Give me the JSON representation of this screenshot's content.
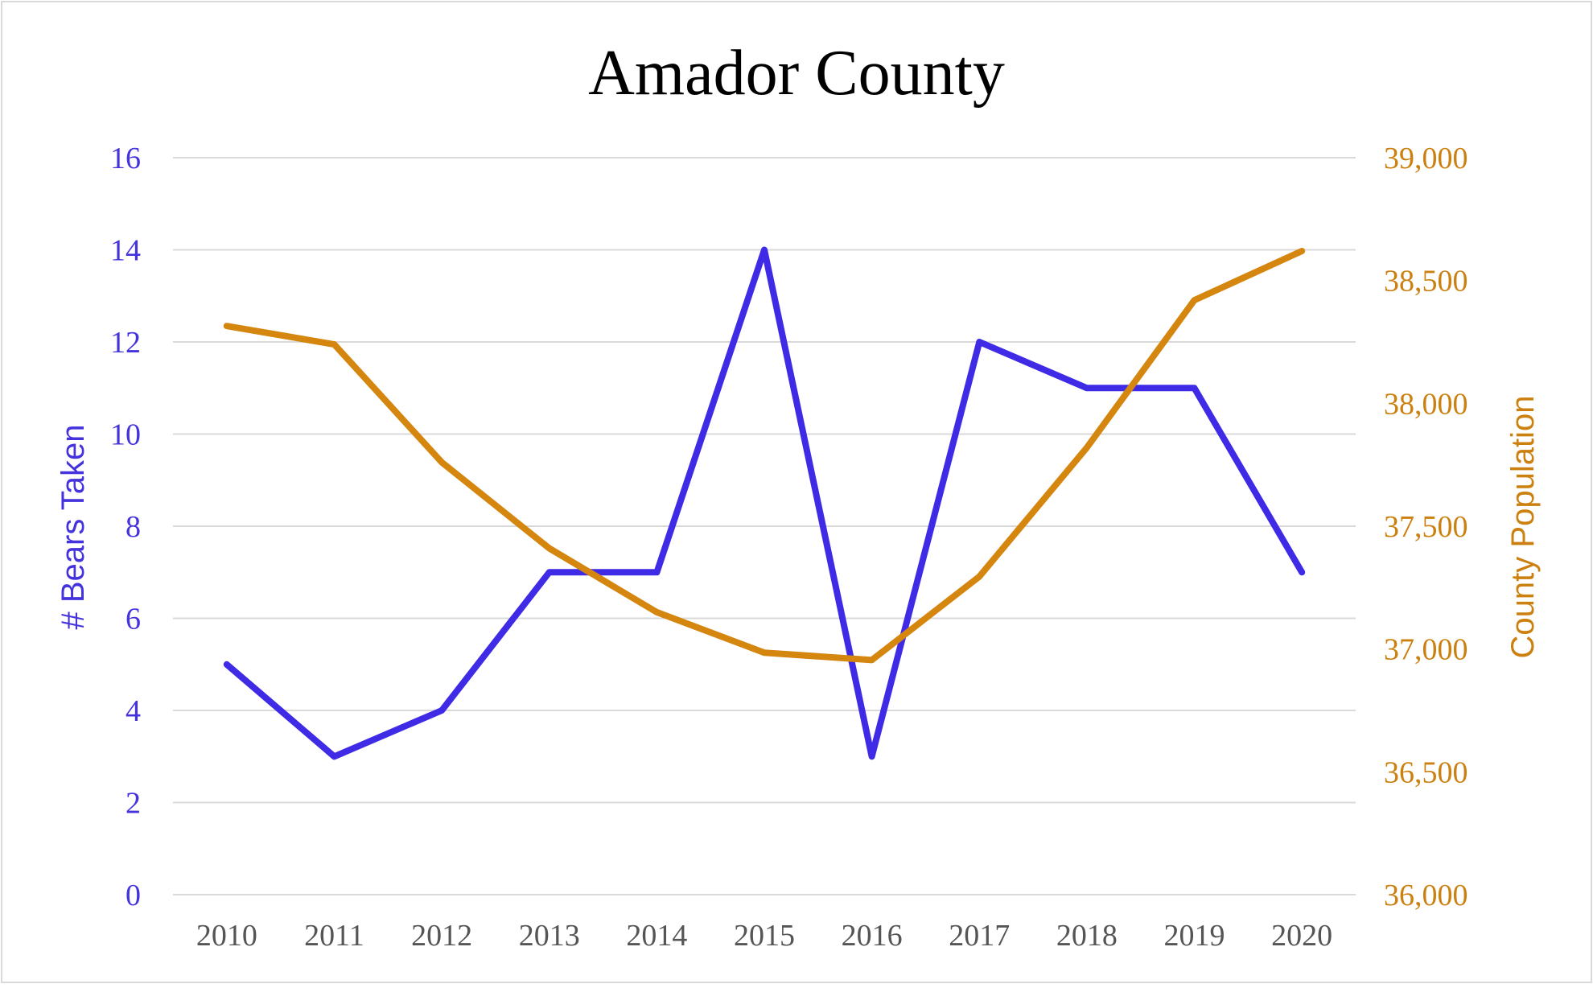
{
  "chart_data": {
    "type": "line",
    "title": "Amador County",
    "categories": [
      "2010",
      "2011",
      "2012",
      "2013",
      "2014",
      "2015",
      "2016",
      "2017",
      "2018",
      "2019",
      "2020"
    ],
    "y_left": {
      "label": "# Bears Taken",
      "range": [
        0,
        16
      ],
      "ticks": [
        "0",
        "2",
        "4",
        "6",
        "8",
        "10",
        "12",
        "14",
        "16"
      ]
    },
    "y_right": {
      "label": "County Population",
      "range": [
        36000,
        39000
      ],
      "ticks": [
        "36,000",
        "36,500",
        "37,000",
        "37,500",
        "38,000",
        "38,500",
        "39,000"
      ]
    },
    "series": [
      {
        "axis": "left",
        "color": "#3f2be6",
        "values": [
          5,
          3,
          4,
          7,
          7,
          14,
          3,
          12,
          11,
          11,
          7
        ]
      },
      {
        "axis": "right",
        "color": "#d4860f",
        "values": [
          38315,
          38240,
          37760,
          37410,
          37150,
          36985,
          36955,
          37295,
          37820,
          38420,
          38620
        ]
      }
    ],
    "grid": true,
    "legend": "none"
  }
}
